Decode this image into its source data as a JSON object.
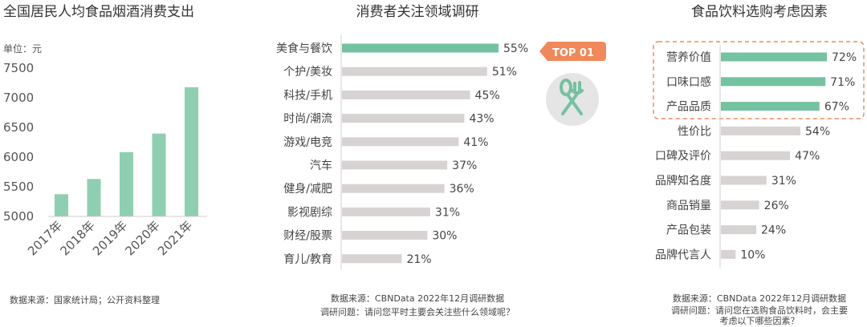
{
  "colors": {
    "accent": "#8fcfb1",
    "accent_strong": "#73c2a0",
    "gray_bar": "#d8d3d3",
    "badge": "#f0885a",
    "dash": "#f0885a",
    "icon_bg": "#e5e5e5",
    "icon_fg": "#73c2a0"
  },
  "chart_data": [
    {
      "type": "bar",
      "title": "全国居民人均食品烟酒消费支出",
      "unit": "单位：元",
      "categories": [
        "2017年",
        "2018年",
        "2019年",
        "2020年",
        "2021年"
      ],
      "values": [
        5374,
        5631,
        6084,
        6397,
        7178
      ],
      "ylim": [
        5000,
        7500
      ],
      "yticks": [
        "5000",
        "5500",
        "6000",
        "6500",
        "7000",
        "7500"
      ],
      "source": "数据来源：国家统计局；公开资料整理"
    },
    {
      "type": "bar",
      "orientation": "horizontal",
      "title": "消费者关注领域调研",
      "categories": [
        "美食与餐饮",
        "个护/美妆",
        "科技/手机",
        "时尚/潮流",
        "游戏/电竞",
        "汽车",
        "健身/减肥",
        "影视剧综",
        "财经/股票",
        "育儿/教育"
      ],
      "values": [
        55,
        51,
        45,
        43,
        41,
        37,
        36,
        31,
        30,
        21
      ],
      "value_labels": [
        "55%",
        "51%",
        "45%",
        "43%",
        "41%",
        "37%",
        "36%",
        "31%",
        "30%",
        "21%"
      ],
      "badge": "TOP 01",
      "icon": "fork-spoon-icon",
      "source": "数据来源：CBNData 2022年12月调研数据",
      "question": "调研问题：请问您平时主要会关注些什么领域呢？"
    },
    {
      "type": "bar",
      "orientation": "horizontal",
      "title": "食品饮料选购考虑因素",
      "categories": [
        "营养价值",
        "口味口感",
        "产品品质",
        "性价比",
        "口碑及评价",
        "品牌知名度",
        "商品销量",
        "产品包装",
        "品牌代言人"
      ],
      "values": [
        72,
        71,
        67,
        54,
        47,
        31,
        26,
        24,
        10
      ],
      "value_labels": [
        "72%",
        "71%",
        "67%",
        "54%",
        "47%",
        "31%",
        "26%",
        "24%",
        "10%"
      ],
      "highlighted_count": 3,
      "source": "数据来源：CBNData 2022年12月调研数据",
      "question_line1": "调研问题：请问您在选购食品饮料时，会主要",
      "question_line2": "考虑以下哪些因素？"
    }
  ]
}
